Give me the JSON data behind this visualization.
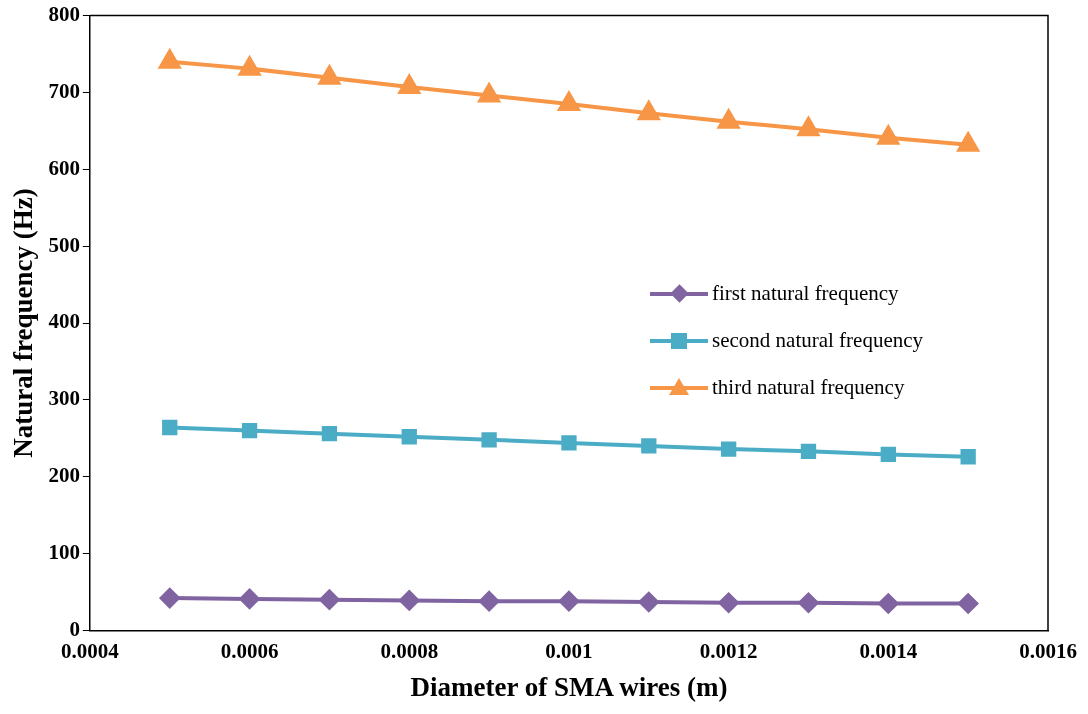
{
  "chart_data": {
    "type": "line",
    "xlabel": "Diameter of SMA wires (m)",
    "ylabel": "Natural frequency (Hz)",
    "x": [
      0.0005,
      0.0006,
      0.0007,
      0.0008,
      0.0009,
      0.001,
      0.0011,
      0.0012,
      0.0013,
      0.0014,
      0.0015
    ],
    "xlim": [
      0.0004,
      0.0016
    ],
    "xticks": [
      0.0004,
      0.0006,
      0.0008,
      0.001,
      0.0012,
      0.0014,
      0.0016
    ],
    "ylim": [
      0,
      800
    ],
    "yticks": [
      0,
      100,
      200,
      300,
      400,
      500,
      600,
      700,
      800
    ],
    "grid": false,
    "legend": "right",
    "line_style": "solid",
    "series": [
      {
        "name": "first natural frequency",
        "color": "#8064a2",
        "marker": "diamond",
        "values": [
          42,
          41,
          40,
          39,
          38,
          38,
          37,
          36,
          36,
          35,
          35
        ]
      },
      {
        "name": "second natural frequency",
        "color": "#4bacc6",
        "marker": "square",
        "values": [
          264,
          260,
          256,
          252,
          248,
          244,
          240,
          236,
          233,
          229,
          226
        ]
      },
      {
        "name": "third natural frequency",
        "color": "#f79646",
        "marker": "triangle",
        "values": [
          740,
          731,
          719,
          707,
          696,
          685,
          673,
          662,
          652,
          641,
          632
        ]
      }
    ]
  }
}
